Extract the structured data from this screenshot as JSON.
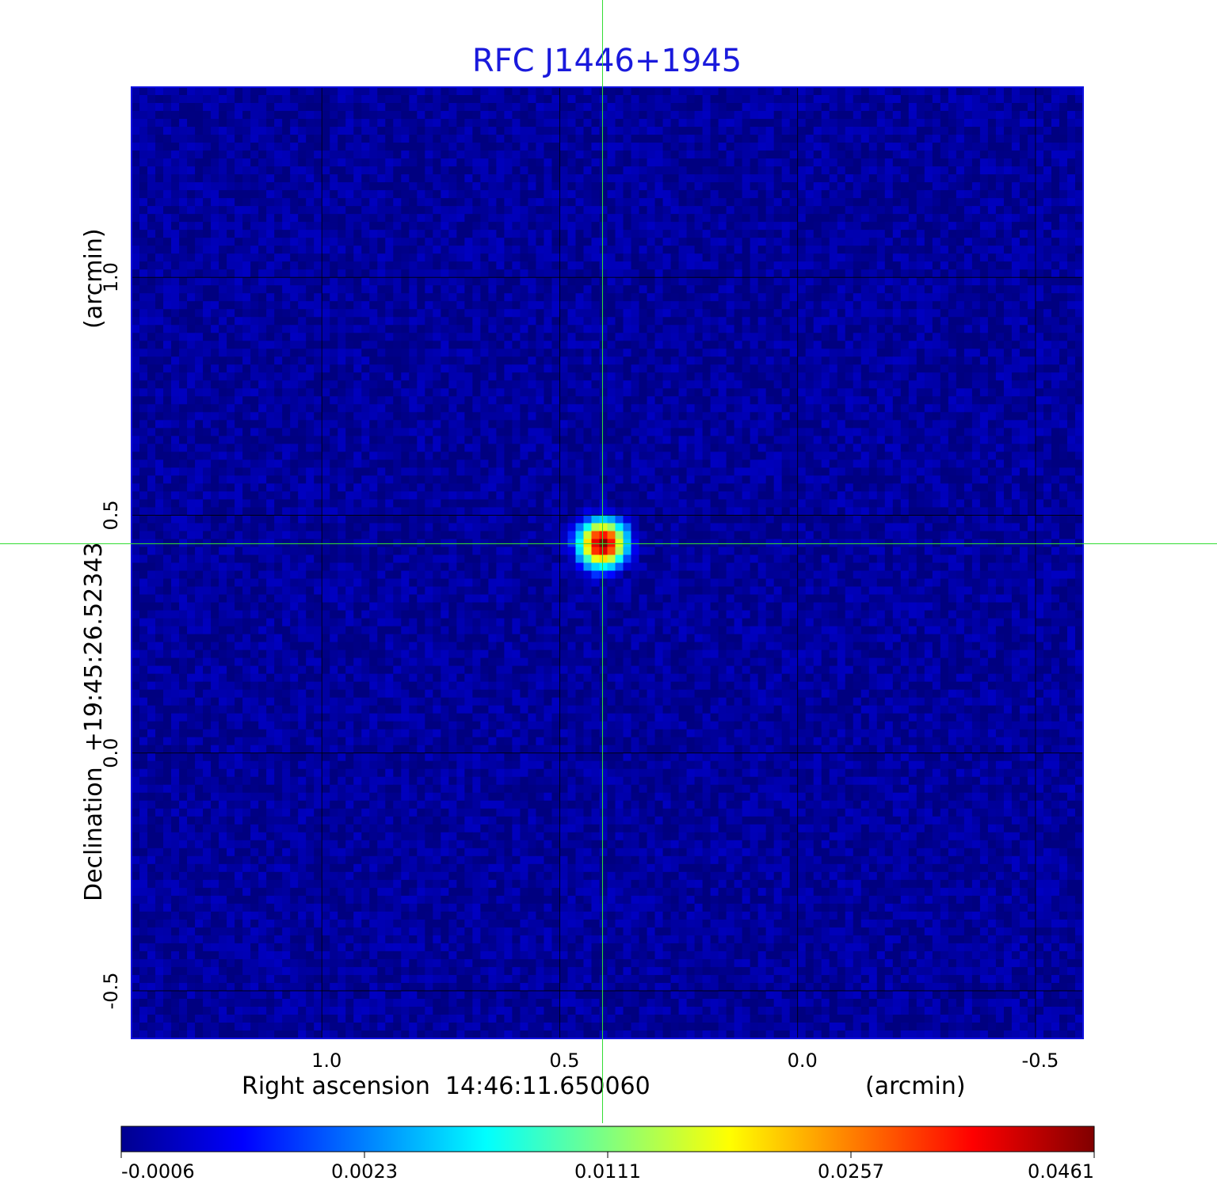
{
  "chart_data": {
    "type": "heatmap",
    "title": "RFC J1446+1945",
    "title_color": "#1a1adc",
    "xlabel": "Right ascension  14:46:11.650060",
    "xunit": "(arcmin)",
    "ylabel": "Declination  +19:45:26.52343",
    "yunit": "(arcmin)",
    "xlim": [
      1.4,
      -0.6
    ],
    "ylim": [
      -0.6,
      1.4
    ],
    "x_ticks": [
      1.0,
      0.5,
      0.0,
      -0.5
    ],
    "y_ticks": [
      -0.5,
      0.0,
      0.5,
      1.0
    ],
    "x_tick_labels": [
      "1.0",
      "0.5",
      "0.0",
      "-0.5"
    ],
    "y_tick_labels": [
      "-0.5",
      "0.0",
      "0.5",
      "1.0"
    ],
    "grid": true,
    "grid_color": "#000000",
    "crosshair": {
      "x": 0.41,
      "y": 0.44,
      "color": "#33dd33"
    },
    "source": {
      "x": 0.41,
      "y": 0.44,
      "peak": 0.0461
    },
    "noise_level": -0.0003,
    "colormap": "jet",
    "colorbar": {
      "ticks": [
        -0.0006,
        0.0023,
        0.0111,
        0.0257,
        0.0461
      ],
      "tick_labels": [
        "-0.0006",
        "0.0023",
        "0.0111",
        "0.0257",
        "0.0461"
      ],
      "min": -0.0006,
      "max": 0.0461
    }
  }
}
